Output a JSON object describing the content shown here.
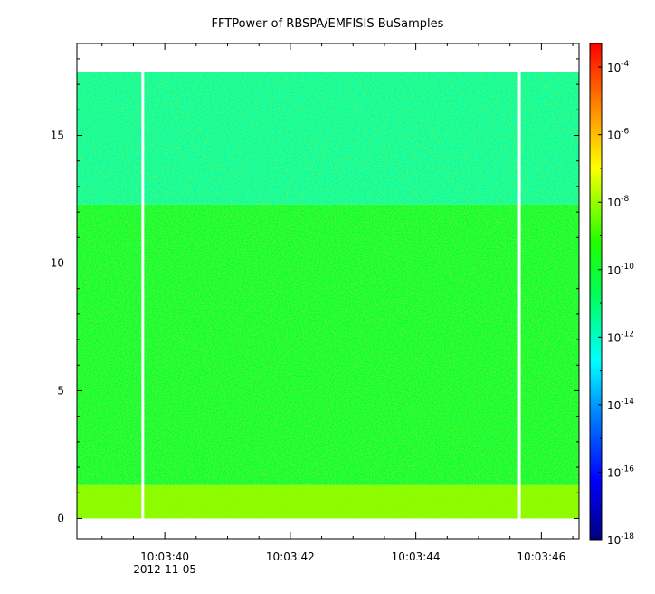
{
  "chart_data": {
    "type": "heatmap",
    "title": "FFTPower of RBSPA/EMFISIS  BuSamples",
    "xlabel": "",
    "ylabel": "",
    "x_start_date": "2012-11-05",
    "x_ticks": [
      {
        "time": "10:03:40",
        "date": "2012-11-05"
      },
      {
        "time": "10:03:42",
        "date": ""
      },
      {
        "time": "10:03:44",
        "date": ""
      },
      {
        "time": "10:03:46",
        "date": ""
      }
    ],
    "xlim": [
      "10:03:38.6",
      "10:03:46.6"
    ],
    "ylim": [
      -0.8,
      18.6
    ],
    "y_ticks": [
      0,
      5,
      10,
      15
    ],
    "data_gaps": [
      "10:03:39.65",
      "10:03:45.65"
    ],
    "bands": [
      {
        "y_range": [
          0,
          1.3
        ],
        "level": -8.2
      },
      {
        "y_range": [
          1.3,
          12.3
        ],
        "level": -10.3
      },
      {
        "y_range": [
          12.3,
          17.5
        ],
        "level": -11.8
      }
    ],
    "colorbar": {
      "scale": "log",
      "range_exponent": [
        -18,
        -3.3
      ],
      "tick_exponents": [
        -18,
        -16,
        -14,
        -12,
        -10,
        -8,
        -6,
        -4
      ],
      "tick_labels": [
        "10",
        "10",
        "10",
        "10",
        "10",
        "10",
        "10",
        "10"
      ],
      "tick_superscripts": [
        "-18",
        "-16",
        "-14",
        "-12",
        "-10",
        "-8",
        "-6",
        "-4"
      ]
    }
  }
}
